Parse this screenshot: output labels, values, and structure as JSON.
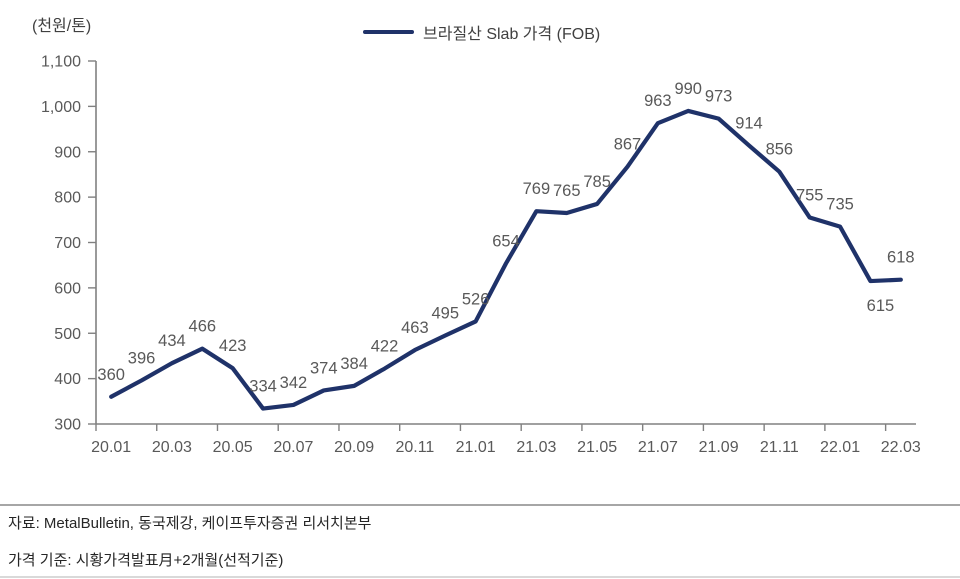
{
  "unit_label": "(천원/톤)",
  "legend": {
    "label": "브라질산 Slab 가격 (FOB)",
    "line_color": "#1f3269"
  },
  "chart_data": {
    "type": "line",
    "title": "브라질산 Slab 가격 (FOB)",
    "ylabel": "(천원/톤)",
    "categories": [
      "20.01",
      "20.02",
      "20.03",
      "20.04",
      "20.05",
      "20.06",
      "20.07",
      "20.08",
      "20.09",
      "20.10",
      "20.11",
      "20.12",
      "21.01",
      "21.02",
      "21.03",
      "21.04",
      "21.05",
      "21.06",
      "21.07",
      "21.08",
      "21.09",
      "21.10",
      "21.11",
      "21.12",
      "22.01",
      "22.02",
      "22.03"
    ],
    "series": [
      {
        "name": "브라질산 Slab 가격 (FOB)",
        "values": [
          360,
          396,
          434,
          466,
          423,
          334,
          342,
          374,
          384,
          422,
          463,
          495,
          526,
          654,
          769,
          765,
          785,
          867,
          963,
          990,
          973,
          914,
          856,
          755,
          735,
          615,
          618
        ]
      }
    ],
    "x_tick_labels": [
      "20.01",
      "20.03",
      "20.05",
      "20.07",
      "20.09",
      "20.11",
      "21.01",
      "21.03",
      "21.05",
      "21.07",
      "21.09",
      "21.11",
      "22.01",
      "22.03"
    ],
    "x_tick_every": 2,
    "ylim": [
      300,
      1100
    ],
    "y_tick_step": 100,
    "grid": false,
    "legend_position": "top-center",
    "data_labels": true,
    "label_placement_exceptions": [
      {
        "index": 25,
        "position": "below"
      }
    ],
    "colors": {
      "line": "#1f3269",
      "axis": "#808080",
      "tick_text": "#595959",
      "data_label_text": "#595959"
    }
  },
  "footer": {
    "source": "자료: MetalBulletin, 동국제강, 케이프투자증권 리서치본부",
    "note": "가격 기준: 시황가격발표月+2개월(선적기준)"
  }
}
